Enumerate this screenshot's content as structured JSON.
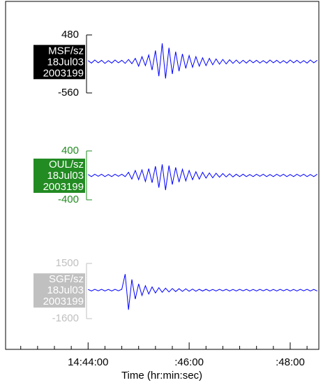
{
  "chart_data": {
    "type": "seismogram",
    "xlabel": "Time (hr:min:sec)",
    "xlim": [
      52942,
      53314
    ],
    "xticks": [
      {
        "value": 53040,
        "label": "14:44:00"
      },
      {
        "value": 53160,
        "label": ":46:00"
      },
      {
        "value": 53280,
        "label": ":48:00"
      }
    ],
    "xticks_minor": [
      52960,
      52980,
      53000,
      53020,
      53060,
      53080,
      53100,
      53120,
      53140,
      53180,
      53200,
      53220,
      53240,
      53260,
      53300
    ],
    "x": [
      53040,
      53044,
      53048,
      53052,
      53056,
      53060,
      53064,
      53068,
      53072,
      53076,
      53080,
      53084,
      53088,
      53092,
      53096,
      53100,
      53104,
      53108,
      53112,
      53116,
      53120,
      53124,
      53128,
      53132,
      53136,
      53140,
      53144,
      53148,
      53152,
      53156,
      53160,
      53164,
      53168,
      53172,
      53176,
      53180,
      53184,
      53188,
      53192,
      53196,
      53200,
      53204,
      53208,
      53212,
      53216,
      53220,
      53224,
      53228,
      53232,
      53236,
      53240,
      53244,
      53248,
      53252,
      53256,
      53260,
      53264,
      53268,
      53272,
      53276,
      53280,
      53284,
      53288,
      53292,
      53296,
      53300,
      53304,
      53308,
      53312
    ],
    "traces": [
      {
        "label": [
          "MSF/sz",
          "18Jul03",
          "2003199"
        ],
        "color": "#0000ff",
        "label_color": "#000000",
        "ylim": [
          -560,
          480
        ],
        "yticks": [
          480,
          -560
        ],
        "values": [
          20,
          -25,
          30,
          -20,
          25,
          -30,
          20,
          -25,
          30,
          -20,
          25,
          -30,
          40,
          -35,
          60,
          -80,
          90,
          -70,
          120,
          -150,
          200,
          -260,
          330,
          -300,
          250,
          -220,
          180,
          -170,
          140,
          -120,
          110,
          -100,
          90,
          -80,
          70,
          -70,
          60,
          -55,
          50,
          -45,
          40,
          -40,
          35,
          -30,
          30,
          -30,
          25,
          -25,
          30,
          -20,
          25,
          -25,
          20,
          -25,
          30,
          -20,
          25,
          -25,
          20,
          -25,
          30,
          -20,
          25,
          -25,
          20,
          -25,
          30,
          -20,
          25
        ]
      },
      {
        "label": [
          "OUL/sz",
          "18Jul03",
          "2003199"
        ],
        "color": "#0000ff",
        "label_color": "#228b22",
        "ylim": [
          -400,
          400
        ],
        "yticks": [
          400,
          -400
        ],
        "values": [
          15,
          -20,
          20,
          -15,
          20,
          -20,
          15,
          -20,
          20,
          -15,
          20,
          -20,
          50,
          -60,
          80,
          -70,
          90,
          -100,
          110,
          -120,
          150,
          -200,
          180,
          -240,
          160,
          -150,
          130,
          -110,
          100,
          -90,
          80,
          -70,
          60,
          -60,
          50,
          -45,
          40,
          -40,
          35,
          -30,
          30,
          -25,
          25,
          -25,
          20,
          -20,
          20,
          -20,
          15,
          -20,
          20,
          -15,
          20,
          -20,
          15,
          -20,
          20,
          -15,
          20,
          -20,
          15,
          -20,
          20,
          -15,
          20,
          -20,
          15,
          -20,
          20
        ]
      },
      {
        "label": [
          "SGF/sz",
          "18Jul03",
          "2003199"
        ],
        "color": "#0000ff",
        "label_color": "#c0c0c0",
        "ylim": [
          -1600,
          1500
        ],
        "yticks": [
          1500,
          -1600
        ],
        "values": [
          40,
          -50,
          50,
          -40,
          50,
          -50,
          40,
          -50,
          50,
          -40,
          50,
          900,
          -1100,
          600,
          -500,
          350,
          -300,
          250,
          -220,
          180,
          -160,
          140,
          -120,
          110,
          -100,
          90,
          -80,
          80,
          -70,
          70,
          -60,
          60,
          -60,
          50,
          -50,
          50,
          -50,
          40,
          -50,
          50,
          -40,
          50,
          -50,
          40,
          -50,
          50,
          -40,
          50,
          -50,
          40,
          -50,
          50,
          -40,
          50,
          -50,
          40,
          -50,
          50,
          -40,
          50,
          -50,
          40,
          -50,
          50,
          -40,
          50,
          -50,
          40,
          -50
        ]
      }
    ]
  }
}
